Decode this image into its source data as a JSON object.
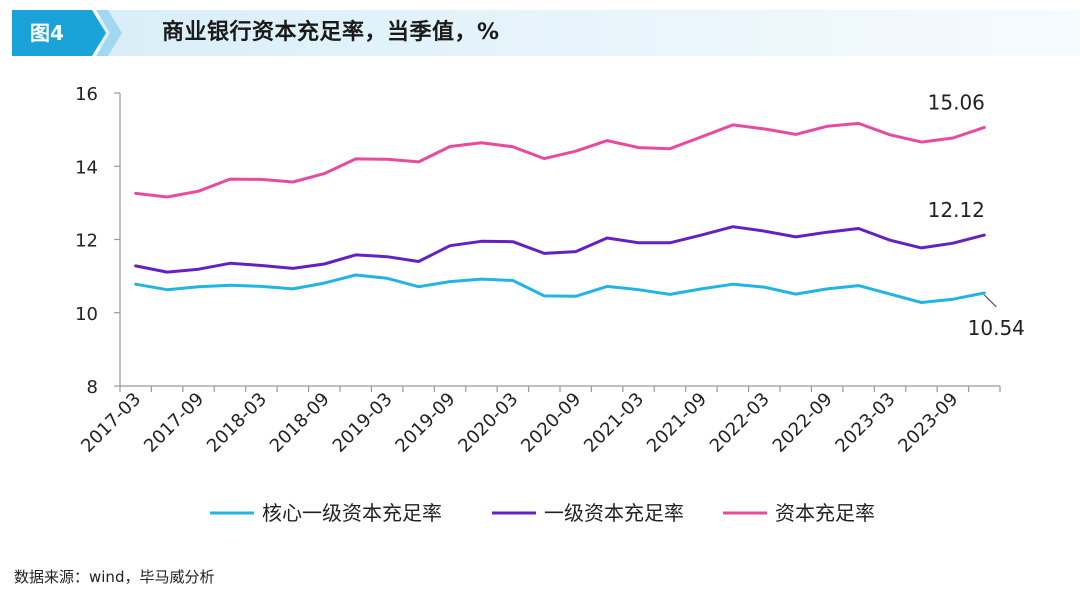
{
  "header": {
    "badge": "图4",
    "title": "商业银行资本充足率，当季值，%",
    "colors": {
      "badge": "#1aa3d9",
      "band": "#e6f4fa"
    }
  },
  "source": "数据来源：wind，毕马威分析",
  "chart_data": {
    "type": "line",
    "title": "商业银行资本充足率，当季值，%",
    "xlabel": "",
    "ylabel": "",
    "ylim": [
      8,
      16
    ],
    "yticks": [
      8,
      10,
      12,
      14,
      16
    ],
    "grid": false,
    "legend_position": "bottom",
    "x": [
      "2017-03",
      "2017-06",
      "2017-09",
      "2017-12",
      "2018-03",
      "2018-06",
      "2018-09",
      "2018-12",
      "2019-03",
      "2019-06",
      "2019-09",
      "2019-12",
      "2020-03",
      "2020-06",
      "2020-09",
      "2020-12",
      "2021-03",
      "2021-06",
      "2021-09",
      "2021-12",
      "2022-03",
      "2022-06",
      "2022-09",
      "2022-12",
      "2023-03",
      "2023-06",
      "2023-09",
      "2023-12"
    ],
    "tick_labels": [
      "2017-03",
      "2017-09",
      "2018-03",
      "2018-09",
      "2019-03",
      "2019-09",
      "2020-03",
      "2020-09",
      "2021-03",
      "2021-09",
      "2022-03",
      "2022-09",
      "2023-03",
      "2023-09"
    ],
    "series": [
      {
        "name": "核心一级资本充足率",
        "color": "#22b4e4",
        "values": [
          10.78,
          10.63,
          10.71,
          10.75,
          10.72,
          10.65,
          10.81,
          11.03,
          10.94,
          10.71,
          10.85,
          10.92,
          10.88,
          10.46,
          10.45,
          10.72,
          10.63,
          10.5,
          10.65,
          10.78,
          10.7,
          10.51,
          10.65,
          10.74,
          10.51,
          10.28,
          10.37,
          10.54
        ],
        "end_label": "10.54"
      },
      {
        "name": "一级资本充足率",
        "color": "#6321c4",
        "values": [
          11.28,
          11.11,
          11.19,
          11.35,
          11.29,
          11.21,
          11.33,
          11.58,
          11.53,
          11.4,
          11.83,
          11.95,
          11.94,
          11.62,
          11.67,
          12.04,
          11.91,
          11.91,
          12.12,
          12.35,
          12.23,
          12.07,
          12.2,
          12.3,
          11.98,
          11.77,
          11.9,
          12.12
        ],
        "end_label": "12.12"
      },
      {
        "name": "资本充足率",
        "color": "#e84b9e",
        "values": [
          13.26,
          13.16,
          13.32,
          13.65,
          13.64,
          13.57,
          13.8,
          14.2,
          14.19,
          14.12,
          14.54,
          14.64,
          14.53,
          14.21,
          14.41,
          14.7,
          14.51,
          14.48,
          14.8,
          15.13,
          15.02,
          14.87,
          15.09,
          15.17,
          14.86,
          14.66,
          14.77,
          15.06
        ],
        "end_label": "15.06"
      }
    ]
  }
}
